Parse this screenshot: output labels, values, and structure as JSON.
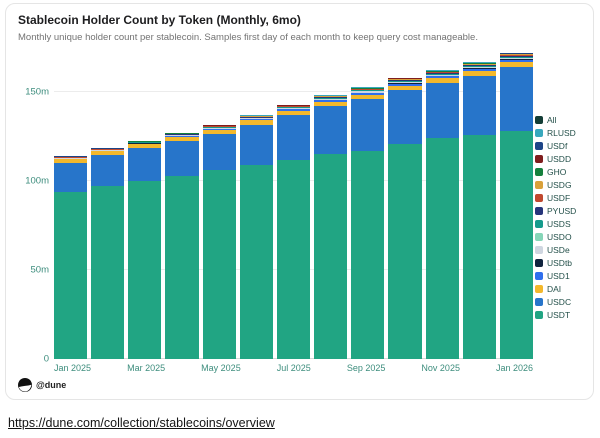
{
  "header": {
    "title": "Stablecoin Holder Count by Token (Monthly, 6mo)",
    "subtitle": "Monthly unique holder count per stablecoin. Samples first day of each month to keep query cost manageable."
  },
  "watermark": {
    "label": "@dune"
  },
  "footer": {
    "url": "https://dune.com/collection/stablecoins/overview"
  },
  "chart_data": {
    "type": "bar",
    "stacked": true,
    "grid": true,
    "legend_position": "right",
    "title": "Stablecoin Holder Count by Token (Monthly, 6mo)",
    "xlabel": "",
    "ylabel": "",
    "ylim": [
      0,
      173
    ],
    "y_ticks": [
      0,
      50,
      100,
      150
    ],
    "y_tick_labels": [
      "0",
      "50m",
      "100m",
      "150m"
    ],
    "categories": [
      "Jan 2025",
      "Feb 2025",
      "Mar 2025",
      "Apr 2025",
      "May 2025",
      "Jun 2025",
      "Jul 2025",
      "Aug 2025",
      "Sep 2025",
      "Oct 2025",
      "Nov 2025",
      "Dec 2025",
      "Jan 2026"
    ],
    "x_tick_labels": [
      "Jan 2025",
      "Mar 2025",
      "May 2025",
      "Jul 2025",
      "Sep 2025",
      "Nov 2025",
      "Jan 2026"
    ],
    "series": [
      {
        "name": "USDT",
        "color": "#21a583",
        "values": [
          94,
          97,
          100,
          103,
          106,
          109,
          112,
          115,
          117,
          121,
          124,
          126,
          128
        ]
      },
      {
        "name": "USDC",
        "color": "#2775ca",
        "values": [
          16,
          17.5,
          18.5,
          19.5,
          20.5,
          22.5,
          25,
          27,
          29,
          30,
          31,
          33,
          36
        ]
      },
      {
        "name": "DAI",
        "color": "#f3b82c",
        "values": [
          2.3,
          2.3,
          2.4,
          2.4,
          2.4,
          2.5,
          2.5,
          2.5,
          2.5,
          2.6,
          2.6,
          2.6,
          2.7
        ]
      },
      {
        "name": "USD1",
        "color": "#2f6fed",
        "values": [
          0,
          0,
          0.1,
          0.3,
          0.5,
          0.6,
          0.8,
          0.9,
          1.0,
          1.1,
          1.2,
          1.3,
          1.4
        ]
      },
      {
        "name": "USDtb",
        "color": "#10243e",
        "values": [
          0.1,
          0.1,
          0.1,
          0.1,
          0.1,
          0.1,
          0.2,
          0.2,
          0.2,
          0.2,
          0.2,
          0.3,
          0.3
        ]
      },
      {
        "name": "USDe",
        "color": "#cfd6e0",
        "values": [
          0.3,
          0.3,
          0.4,
          0.4,
          0.4,
          0.5,
          0.5,
          0.5,
          0.6,
          0.6,
          0.6,
          0.7,
          0.7
        ]
      },
      {
        "name": "USDO",
        "color": "#86d6b8",
        "values": [
          0.1,
          0.1,
          0.1,
          0.1,
          0.1,
          0.1,
          0.1,
          0.2,
          0.2,
          0.2,
          0.2,
          0.2,
          0.2
        ]
      },
      {
        "name": "USDS",
        "color": "#159b8c",
        "values": [
          0.2,
          0.2,
          0.2,
          0.3,
          0.3,
          0.3,
          0.4,
          0.4,
          0.4,
          0.5,
          0.5,
          0.5,
          0.6
        ]
      },
      {
        "name": "PYUSD",
        "color": "#26357a",
        "values": [
          0.2,
          0.2,
          0.2,
          0.3,
          0.3,
          0.3,
          0.3,
          0.4,
          0.4,
          0.4,
          0.4,
          0.5,
          0.5
        ]
      },
      {
        "name": "USDF",
        "color": "#c0492f",
        "values": [
          0.1,
          0.1,
          0.1,
          0.1,
          0.2,
          0.2,
          0.2,
          0.2,
          0.3,
          0.3,
          0.3,
          0.3,
          0.3
        ]
      },
      {
        "name": "USDG",
        "color": "#d9a13b",
        "values": [
          0.1,
          0.1,
          0.1,
          0.2,
          0.2,
          0.2,
          0.3,
          0.3,
          0.3,
          0.4,
          0.4,
          0.5,
          0.5
        ]
      },
      {
        "name": "GHO",
        "color": "#15803d",
        "values": [
          0.1,
          0.1,
          0.1,
          0.1,
          0.1,
          0.1,
          0.1,
          0.1,
          0.2,
          0.2,
          0.2,
          0.2,
          0.2
        ]
      },
      {
        "name": "USDD",
        "color": "#7f1d1d",
        "values": [
          0.2,
          0.2,
          0.2,
          0.2,
          0.2,
          0.2,
          0.2,
          0.2,
          0.2,
          0.2,
          0.2,
          0.2,
          0.2
        ]
      },
      {
        "name": "USDf",
        "color": "#1c4587",
        "values": [
          0.1,
          0.1,
          0.1,
          0.1,
          0.1,
          0.1,
          0.1,
          0.1,
          0.1,
          0.1,
          0.1,
          0.2,
          0.2
        ]
      },
      {
        "name": "RLUSD",
        "color": "#38a8bd",
        "values": [
          0.1,
          0.1,
          0.1,
          0.1,
          0.1,
          0.2,
          0.2,
          0.2,
          0.3,
          0.3,
          0.3,
          0.3,
          0.4
        ]
      }
    ],
    "legend": [
      {
        "label": "All",
        "color": "#133d36"
      },
      {
        "label": "RLUSD",
        "color": "#38a8bd"
      },
      {
        "label": "USDf",
        "color": "#1c4587"
      },
      {
        "label": "USDD",
        "color": "#7f1d1d"
      },
      {
        "label": "GHO",
        "color": "#15803d"
      },
      {
        "label": "USDG",
        "color": "#d9a13b"
      },
      {
        "label": "USDF",
        "color": "#c0492f"
      },
      {
        "label": "PYUSD",
        "color": "#26357a"
      },
      {
        "label": "USDS",
        "color": "#159b8c"
      },
      {
        "label": "USDO",
        "color": "#86d6b8"
      },
      {
        "label": "USDe",
        "color": "#cfd6e0"
      },
      {
        "label": "USDtb",
        "color": "#10243e"
      },
      {
        "label": "USD1",
        "color": "#2f6fed"
      },
      {
        "label": "DAI",
        "color": "#f3b82c"
      },
      {
        "label": "USDC",
        "color": "#2775ca"
      },
      {
        "label": "USDT",
        "color": "#21a583"
      }
    ]
  }
}
